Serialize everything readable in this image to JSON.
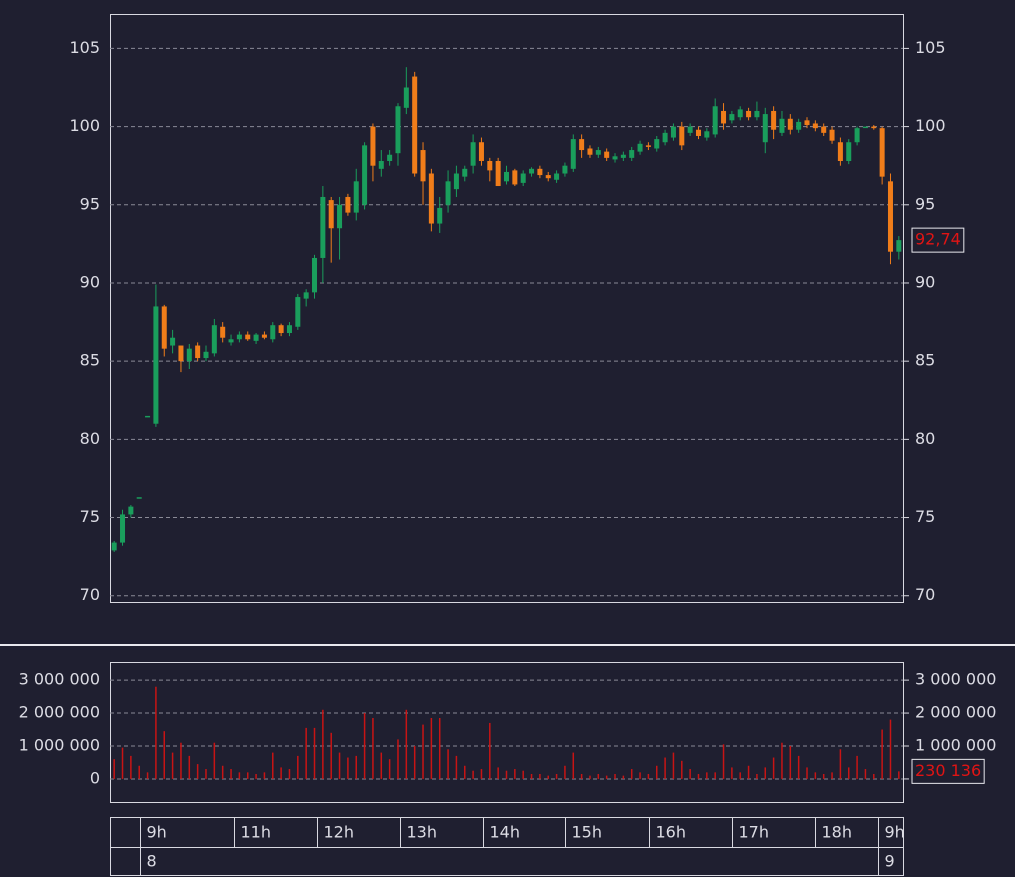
{
  "chart_data": {
    "type": "candlestick",
    "up_color": "#1a9e5c",
    "down_color": "#f07d1a",
    "volume_color": "#c81414",
    "label_color": "#e01414",
    "open": [
      72.9,
      73.4,
      75.2,
      76.3,
      81.5,
      81.0,
      88.5,
      86.0,
      86.0,
      85.0,
      86.0,
      85.2,
      85.5,
      87.2,
      86.2,
      86.4,
      86.7,
      86.3,
      86.7,
      86.4,
      87.3,
      86.8,
      87.2,
      89.0,
      89.4,
      91.6,
      95.3,
      93.5,
      95.5,
      94.5,
      95.0,
      100.0,
      97.3,
      97.8,
      98.3,
      101.2,
      103.2,
      98.5,
      97.0,
      93.8,
      95.0,
      96.0,
      96.8,
      97.5,
      99.0,
      97.8,
      97.8,
      96.5,
      97.2,
      96.4,
      97.0,
      97.3,
      96.9,
      96.6,
      97.0,
      97.3,
      99.2,
      98.6,
      98.2,
      98.4,
      97.9,
      98.0,
      98.0,
      98.4,
      98.8,
      98.6,
      99.0,
      99.3,
      100.0,
      99.6,
      99.8,
      99.3,
      99.5,
      101.0,
      100.4,
      100.6,
      101.0,
      100.6,
      99.0,
      101.0,
      99.6,
      100.5,
      99.8,
      100.4,
      100.2,
      100.0,
      99.8,
      99.0,
      97.8,
      99.0,
      100.0,
      100.0,
      99.9,
      96.5,
      92.0
    ],
    "high": [
      73.5,
      75.5,
      75.8,
      76.3,
      81.5,
      89.9,
      88.6,
      87.0,
      86.0,
      86.1,
      86.2,
      86.0,
      87.7,
      87.5,
      86.7,
      86.9,
      86.9,
      86.8,
      86.9,
      87.5,
      87.4,
      87.5,
      89.3,
      89.6,
      91.8,
      96.2,
      95.5,
      95.5,
      95.7,
      97.3,
      99.0,
      100.2,
      98.5,
      98.5,
      101.5,
      103.8,
      103.5,
      99.0,
      97.3,
      95.5,
      97.2,
      97.5,
      97.5,
      99.5,
      99.3,
      98.0,
      98.0,
      97.5,
      97.3,
      97.2,
      97.4,
      97.5,
      97.1,
      97.2,
      97.7,
      99.5,
      99.5,
      98.8,
      98.7,
      98.6,
      98.3,
      98.4,
      98.7,
      99.1,
      99.0,
      99.4,
      99.8,
      100.2,
      100.3,
      100.2,
      100.0,
      99.9,
      101.8,
      101.5,
      101.0,
      101.3,
      101.2,
      101.6,
      101.2,
      101.3,
      101.0,
      100.8,
      100.5,
      100.6,
      100.4,
      100.2,
      100.0,
      99.3,
      99.2,
      100.0,
      100.0,
      100.1,
      100.0,
      97.0,
      93.0
    ],
    "low": [
      72.8,
      73.2,
      75.0,
      76.3,
      81.5,
      80.8,
      85.3,
      85.5,
      84.3,
      84.5,
      85.0,
      85.0,
      85.3,
      86.2,
      86.0,
      86.2,
      86.3,
      86.1,
      86.4,
      86.2,
      86.6,
      86.6,
      87.0,
      88.5,
      89.0,
      90.0,
      91.3,
      91.5,
      94.3,
      94.0,
      94.7,
      96.5,
      96.8,
      97.5,
      97.5,
      100.8,
      96.8,
      95.0,
      93.3,
      93.2,
      94.5,
      95.5,
      96.5,
      97.0,
      97.5,
      96.5,
      96.2,
      96.3,
      96.2,
      96.2,
      96.8,
      96.7,
      96.5,
      96.4,
      96.8,
      97.1,
      98.0,
      98.0,
      98.0,
      97.8,
      97.7,
      97.8,
      97.8,
      98.2,
      98.5,
      98.4,
      98.8,
      99.1,
      98.5,
      99.4,
      99.2,
      99.1,
      99.3,
      99.8,
      100.2,
      100.4,
      100.4,
      100.4,
      98.3,
      99.2,
      99.4,
      99.5,
      99.6,
      99.9,
      99.7,
      99.4,
      98.9,
      97.5,
      97.6,
      98.8,
      100.0,
      99.8,
      96.3,
      91.2,
      91.5
    ],
    "close": [
      73.4,
      75.2,
      75.7,
      76.3,
      81.5,
      88.5,
      85.8,
      86.5,
      85.0,
      85.8,
      85.2,
      85.6,
      87.3,
      86.5,
      86.4,
      86.7,
      86.4,
      86.7,
      86.5,
      87.3,
      86.8,
      87.3,
      89.1,
      89.4,
      91.6,
      95.5,
      93.5,
      95.0,
      94.5,
      96.5,
      98.8,
      97.5,
      97.8,
      98.2,
      101.3,
      102.5,
      97.0,
      96.5,
      93.8,
      94.8,
      96.5,
      97.0,
      97.3,
      99.0,
      97.8,
      97.2,
      96.2,
      97.1,
      96.3,
      97.0,
      97.3,
      96.9,
      96.7,
      97.0,
      97.5,
      99.2,
      98.5,
      98.2,
      98.5,
      98.0,
      98.1,
      98.2,
      98.5,
      98.9,
      98.7,
      99.2,
      99.6,
      100.0,
      98.8,
      100.0,
      99.4,
      99.7,
      101.3,
      100.2,
      100.8,
      101.1,
      100.6,
      101.0,
      100.8,
      99.8,
      100.5,
      99.8,
      100.3,
      100.1,
      99.9,
      99.6,
      99.1,
      97.8,
      99.0,
      99.9,
      100.0,
      99.9,
      96.8,
      92.0,
      92.74
    ],
    "volume": [
      600000,
      950000,
      700000,
      400000,
      200000,
      2800000,
      1450000,
      800000,
      1100000,
      700000,
      450000,
      300000,
      1100000,
      400000,
      300000,
      200000,
      200000,
      150000,
      200000,
      800000,
      350000,
      300000,
      700000,
      1550000,
      1550000,
      2100000,
      1400000,
      800000,
      650000,
      700000,
      2000000,
      1850000,
      800000,
      600000,
      1200000,
      2100000,
      1000000,
      1650000,
      1850000,
      1850000,
      900000,
      700000,
      400000,
      250000,
      300000,
      1700000,
      350000,
      250000,
      300000,
      250000,
      150000,
      150000,
      100000,
      150000,
      400000,
      800000,
      150000,
      100000,
      150000,
      100000,
      150000,
      100000,
      300000,
      200000,
      150000,
      400000,
      650000,
      800000,
      550000,
      300000,
      150000,
      200000,
      200000,
      1050000,
      350000,
      200000,
      400000,
      150000,
      350000,
      650000,
      1100000,
      1000000,
      700000,
      350000,
      200000,
      150000,
      200000,
      900000,
      350000,
      700000,
      300000,
      150000,
      1500000,
      1800000,
      230136
    ],
    "xlim": [
      -0.5,
      94.5
    ],
    "ylim": [
      69.6,
      107.2
    ],
    "yticks": [
      70,
      75,
      80,
      85,
      90,
      95,
      100,
      105
    ],
    "volume_ylim": [
      -700000,
      3550000
    ],
    "volume_yticks": [
      {
        "value": 0,
        "label": "0"
      },
      {
        "value": 1000000,
        "label": "1 000 000"
      },
      {
        "value": 2000000,
        "label": "2 000 000"
      },
      {
        "value": 3000000,
        "label": "3 000 000"
      }
    ],
    "xticks": [
      {
        "value": 3.1,
        "label": "9h"
      },
      {
        "value": 14.4,
        "label": "11h"
      },
      {
        "value": 24.3,
        "label": "12h"
      },
      {
        "value": 34.2,
        "label": "13h"
      },
      {
        "value": 44.2,
        "label": "14h"
      },
      {
        "value": 54.0,
        "label": "15h"
      },
      {
        "value": 64.1,
        "label": "16h"
      },
      {
        "value": 74.0,
        "label": "17h"
      },
      {
        "value": 84.0,
        "label": "18h"
      },
      {
        "value": 91.5,
        "label": "9h"
      }
    ],
    "day_ticks": [
      {
        "value": 3.1,
        "label": "8"
      },
      {
        "value": 91.5,
        "label": "9"
      }
    ],
    "last_price": {
      "value": 92.74,
      "label": "92,74"
    },
    "last_volume": {
      "value": 230136,
      "label": "230 136"
    },
    "grid": true
  }
}
